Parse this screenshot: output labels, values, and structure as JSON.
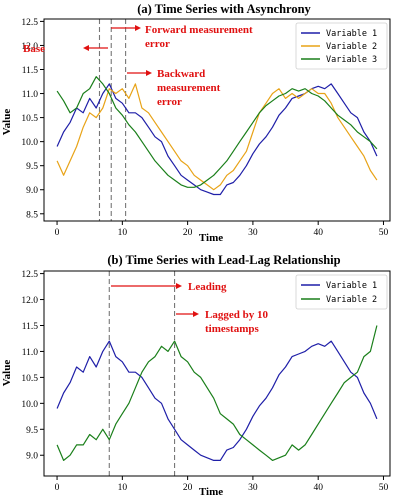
{
  "chart_data": [
    {
      "type": "line",
      "title": "(a) Time Series with Asynchrony",
      "xlabel": "Time",
      "ylabel": "Value",
      "xlim": [
        -2,
        51
      ],
      "ylim": [
        8.35,
        12.55
      ],
      "xticks": [
        0,
        10,
        20,
        30,
        40,
        50
      ],
      "yticks": [
        8.5,
        9.0,
        9.5,
        10.0,
        10.5,
        11.0,
        11.5,
        12.0,
        12.5
      ],
      "ytick_labels": [
        "8.5",
        "9.0",
        "9.5",
        "10.0",
        "10.5",
        "11.0",
        "11.5",
        "12.0",
        "12.5"
      ],
      "legend_position": "top-right",
      "series": [
        {
          "name": "Variable 1",
          "color": "#1f1fa8",
          "x": [
            0,
            1,
            2,
            3,
            4,
            5,
            6,
            7,
            8,
            9,
            10,
            11,
            12,
            13,
            14,
            15,
            16,
            17,
            18,
            19,
            20,
            21,
            22,
            23,
            24,
            25,
            26,
            27,
            28,
            29,
            30,
            31,
            32,
            33,
            34,
            35,
            36,
            37,
            38,
            39,
            40,
            41,
            42,
            43,
            44,
            45,
            46,
            47,
            48,
            49
          ],
          "values": [
            9.9,
            10.2,
            10.4,
            10.7,
            10.6,
            10.9,
            10.7,
            11.0,
            11.2,
            10.9,
            10.8,
            10.6,
            10.6,
            10.5,
            10.3,
            10.1,
            10.0,
            9.7,
            9.5,
            9.3,
            9.2,
            9.1,
            9.0,
            8.95,
            8.9,
            8.9,
            9.1,
            9.15,
            9.3,
            9.5,
            9.75,
            9.95,
            10.1,
            10.3,
            10.55,
            10.7,
            10.9,
            10.95,
            11.0,
            11.1,
            11.15,
            11.1,
            11.2,
            11.0,
            10.8,
            10.6,
            10.5,
            10.2,
            10.0,
            9.7
          ]
        },
        {
          "name": "Variable 2",
          "color": "#e8a317",
          "x": [
            0,
            1,
            2,
            3,
            4,
            5,
            6,
            7,
            8,
            9,
            10,
            11,
            12,
            13,
            14,
            15,
            16,
            17,
            18,
            19,
            20,
            21,
            22,
            23,
            24,
            25,
            26,
            27,
            28,
            29,
            30,
            31,
            32,
            33,
            34,
            35,
            36,
            37,
            38,
            39,
            40,
            41,
            42,
            43,
            44,
            45,
            46,
            47,
            48,
            49
          ],
          "values": [
            9.6,
            9.3,
            9.6,
            9.9,
            10.3,
            10.6,
            10.5,
            10.7,
            11.1,
            11.0,
            11.1,
            10.9,
            11.2,
            10.7,
            10.6,
            10.4,
            10.2,
            10.0,
            9.8,
            9.6,
            9.5,
            9.3,
            9.2,
            9.1,
            9.0,
            9.1,
            9.3,
            9.4,
            9.6,
            9.8,
            10.2,
            10.6,
            10.8,
            11.0,
            11.1,
            10.9,
            11.0,
            10.9,
            11.0,
            11.1,
            11.0,
            11.0,
            10.8,
            10.5,
            10.3,
            10.1,
            9.9,
            9.7,
            9.4,
            9.2
          ]
        },
        {
          "name": "Variable 3",
          "color": "#1a7f1a",
          "x": [
            0,
            1,
            2,
            3,
            4,
            5,
            6,
            7,
            8,
            9,
            10,
            11,
            12,
            13,
            14,
            15,
            16,
            17,
            18,
            19,
            20,
            21,
            22,
            23,
            24,
            25,
            26,
            27,
            28,
            29,
            30,
            31,
            32,
            33,
            34,
            35,
            36,
            37,
            38,
            39,
            40,
            41,
            42,
            43,
            44,
            45,
            46,
            47,
            48,
            49
          ],
          "values": [
            11.05,
            10.85,
            10.6,
            10.7,
            11.0,
            11.1,
            11.35,
            11.2,
            11.0,
            10.7,
            10.55,
            10.35,
            10.2,
            10.0,
            9.8,
            9.6,
            9.45,
            9.3,
            9.2,
            9.1,
            9.05,
            9.05,
            9.1,
            9.2,
            9.3,
            9.45,
            9.6,
            9.8,
            10.0,
            10.2,
            10.4,
            10.6,
            10.75,
            10.85,
            10.95,
            11.0,
            11.1,
            11.05,
            11.1,
            11.0,
            10.95,
            10.85,
            10.7,
            10.55,
            10.45,
            10.35,
            10.2,
            10.1,
            10.0,
            9.85
          ]
        }
      ],
      "vlines": [
        6.5,
        8.3,
        10.5
      ],
      "annotations": {
        "base": "Base",
        "forward": [
          "Forward measurement",
          "error"
        ],
        "backward": [
          "Backward",
          "measurement",
          "error"
        ]
      }
    },
    {
      "type": "line",
      "title": "(b) Time Series with  Lead-Lag Relationship",
      "xlabel": "Time",
      "ylabel": "Value",
      "xlim": [
        -2,
        51
      ],
      "ylim": [
        8.6,
        12.55
      ],
      "xticks": [
        0,
        10,
        20,
        30,
        40,
        50
      ],
      "yticks": [
        9.0,
        9.5,
        10.0,
        10.5,
        11.0,
        11.5,
        12.0,
        12.5
      ],
      "ytick_labels": [
        "9.0",
        "9.5",
        "10.0",
        "10.5",
        "11.0",
        "11.5",
        "12.0",
        "12.5"
      ],
      "legend_position": "top-right",
      "series": [
        {
          "name": "Variable 1",
          "color": "#1f1fa8",
          "x": [
            0,
            1,
            2,
            3,
            4,
            5,
            6,
            7,
            8,
            9,
            10,
            11,
            12,
            13,
            14,
            15,
            16,
            17,
            18,
            19,
            20,
            21,
            22,
            23,
            24,
            25,
            26,
            27,
            28,
            29,
            30,
            31,
            32,
            33,
            34,
            35,
            36,
            37,
            38,
            39,
            40,
            41,
            42,
            43,
            44,
            45,
            46,
            47,
            48,
            49
          ],
          "values": [
            9.9,
            10.2,
            10.4,
            10.7,
            10.6,
            10.9,
            10.7,
            11.0,
            11.2,
            10.9,
            10.8,
            10.6,
            10.6,
            10.5,
            10.3,
            10.1,
            10.0,
            9.7,
            9.5,
            9.3,
            9.2,
            9.1,
            9.0,
            8.95,
            8.9,
            8.9,
            9.1,
            9.15,
            9.3,
            9.5,
            9.75,
            9.95,
            10.1,
            10.3,
            10.55,
            10.7,
            10.9,
            10.95,
            11.0,
            11.1,
            11.15,
            11.1,
            11.2,
            11.0,
            10.8,
            10.6,
            10.5,
            10.2,
            10.0,
            9.7
          ]
        },
        {
          "name": "Variable 2",
          "color": "#1a7f1a",
          "x": [
            0,
            1,
            2,
            3,
            4,
            5,
            6,
            7,
            8,
            9,
            10,
            11,
            12,
            13,
            14,
            15,
            16,
            17,
            18,
            19,
            20,
            21,
            22,
            23,
            24,
            25,
            26,
            27,
            28,
            29,
            30,
            31,
            32,
            33,
            34,
            35,
            36,
            37,
            38,
            39,
            40,
            41,
            42,
            43,
            44,
            45,
            46,
            47,
            48,
            49
          ],
          "values": [
            9.2,
            8.9,
            9.0,
            9.2,
            9.2,
            9.4,
            9.3,
            9.5,
            9.3,
            9.6,
            9.8,
            10.0,
            10.3,
            10.6,
            10.8,
            10.9,
            11.1,
            11.0,
            11.2,
            10.9,
            10.8,
            10.6,
            10.5,
            10.3,
            10.1,
            9.8,
            9.7,
            9.6,
            9.4,
            9.3,
            9.2,
            9.1,
            9.0,
            8.9,
            8.95,
            9.0,
            9.2,
            9.1,
            9.2,
            9.4,
            9.6,
            9.8,
            10.0,
            10.2,
            10.4,
            10.5,
            10.6,
            10.9,
            11.0,
            11.5
          ]
        }
      ],
      "vlines": [
        8,
        18
      ],
      "annotations": {
        "leading": "Leading",
        "lagged": [
          "Lagged by 10",
          "timestamps"
        ]
      }
    }
  ]
}
